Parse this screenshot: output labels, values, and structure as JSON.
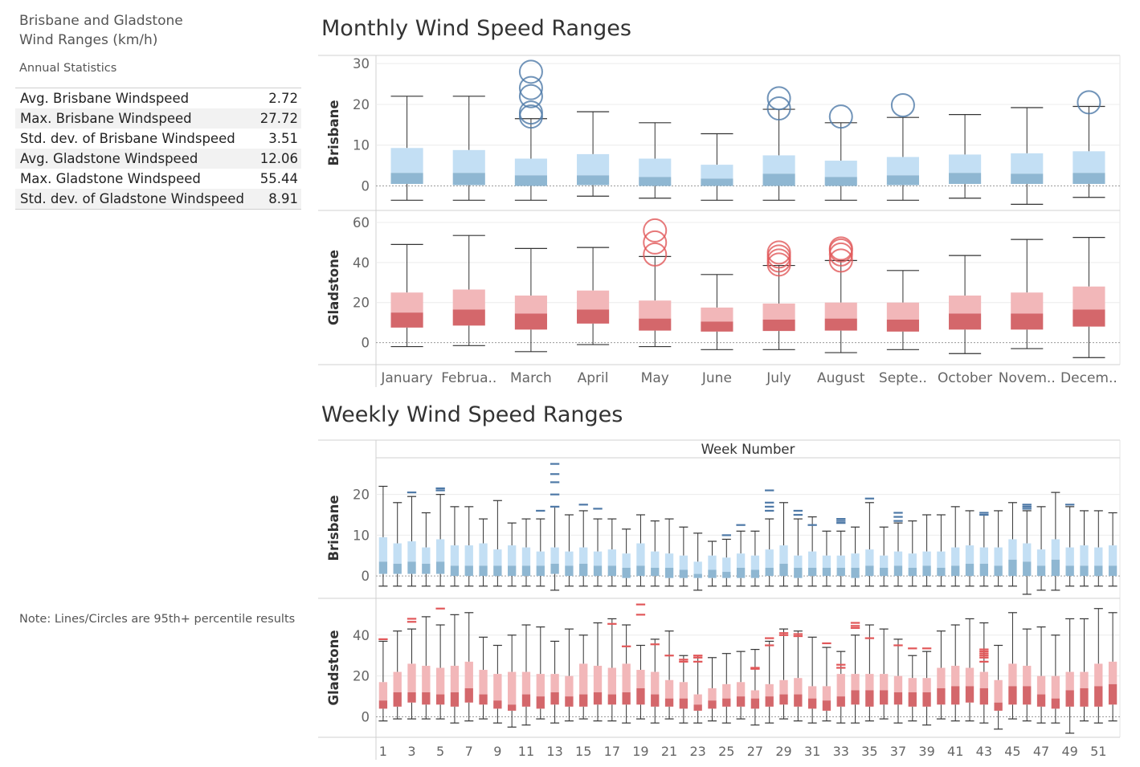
{
  "sidebar": {
    "title_line1": "Brisbane and Gladstone",
    "title_line2": "Wind Ranges (km/h)",
    "stats_heading": "Annual Statistics",
    "stats": [
      {
        "label": "Avg. Brisbane Windspeed",
        "value": "2.72"
      },
      {
        "label": "Max. Brisbane Windspeed",
        "value": "27.72"
      },
      {
        "label": "Std. dev. of Brisbane Windspeed",
        "value": "3.51"
      },
      {
        "label": "Avg. Gladstone Windspeed",
        "value": "12.06"
      },
      {
        "label": "Max. Gladstone Windspeed",
        "value": "55.44"
      },
      {
        "label": "Std. dev. of Gladstone Windspeed",
        "value": "8.91"
      }
    ],
    "note": "Note: Lines/Circles are 95th+ percentile results"
  },
  "colors": {
    "brisbane_upper": "#c3dff4",
    "brisbane_lower": "#8fb7d2",
    "brisbane_outlier": "#4e79a7",
    "gladstone_upper": "#f2b7b9",
    "gladstone_lower": "#d4676b",
    "gladstone_outlier": "#e15759",
    "whisker": "#333333"
  },
  "chart_data": [
    {
      "type": "boxplot",
      "title": "Monthly Wind Speed Ranges",
      "categories": [
        "January",
        "Februa..",
        "March",
        "April",
        "May",
        "June",
        "July",
        "August",
        "Septe..",
        "October",
        "Novem..",
        "Decem.."
      ],
      "outlier_marker": "circle",
      "series": [
        {
          "name": "Brisbane",
          "ylim": [
            -6,
            32
          ],
          "yticks": [
            0,
            10,
            20,
            30
          ],
          "whisker_low": [
            -3.5,
            -3.5,
            -3.5,
            -2.5,
            -3,
            -3.5,
            -3.5,
            -3.5,
            -3.5,
            -3,
            -4.5,
            -2.8
          ],
          "q1": [
            0.5,
            0.2,
            0,
            0.2,
            0,
            0,
            0,
            0,
            0.2,
            0.5,
            0.5,
            0.5
          ],
          "median": [
            3.2,
            3.2,
            2.6,
            2.6,
            2.2,
            1.8,
            3.0,
            2.2,
            2.6,
            3.2,
            3.0,
            3.2
          ],
          "q3": [
            9.3,
            8.8,
            6.7,
            7.8,
            6.7,
            5.2,
            7.5,
            6.2,
            7.1,
            7.7,
            8.0,
            8.5
          ],
          "whisker_high": [
            22,
            22,
            16.5,
            18.2,
            15.5,
            12.8,
            18.8,
            15.5,
            16.8,
            17.5,
            19.2,
            19.5
          ],
          "outliers": [
            [],
            [],
            [
              17,
              18,
              22,
              24,
              28
            ],
            [],
            [],
            [],
            [
              19,
              21.5
            ],
            [
              17
            ],
            [
              19.8
            ],
            [],
            [],
            [
              20.5
            ]
          ]
        },
        {
          "name": "Gladstone",
          "ylim": [
            -11,
            66
          ],
          "yticks": [
            0,
            20,
            40,
            60
          ],
          "whisker_low": [
            -2,
            -1.5,
            -4.5,
            -1,
            -2,
            -3.5,
            -3.5,
            -5,
            -3.5,
            -5.5,
            -3,
            -7.5
          ],
          "q1": [
            7.5,
            8.5,
            6.5,
            9.5,
            6,
            5.5,
            5.8,
            6,
            5.5,
            6.5,
            6.5,
            8
          ],
          "median": [
            15,
            16.5,
            14.5,
            16.5,
            12,
            10.5,
            11.5,
            12,
            11.5,
            14.5,
            14.5,
            16.5
          ],
          "q3": [
            25,
            26.5,
            23.5,
            26,
            21,
            17.5,
            19.5,
            20,
            20,
            23.5,
            25,
            28
          ],
          "whisker_high": [
            49,
            53.5,
            47,
            47.5,
            43,
            34,
            38.5,
            41,
            36,
            43.5,
            51.5,
            52.5
          ],
          "outliers": [
            [],
            [],
            [],
            [],
            [
              44,
              50,
              56
            ],
            [],
            [
              39,
              41,
              43,
              45
            ],
            [
              41,
              44,
              46,
              47
            ],
            [],
            [],
            [],
            []
          ]
        }
      ],
      "x_axis_ticks": [
        "January",
        "Februa..",
        "March",
        "April",
        "May",
        "June",
        "July",
        "August",
        "Septe..",
        "October",
        "Novem..",
        "Decem.."
      ]
    },
    {
      "type": "boxplot",
      "title": "Weekly Wind Speed Ranges",
      "xlabel": "Week Number",
      "categories": [
        1,
        2,
        3,
        4,
        5,
        6,
        7,
        8,
        9,
        10,
        11,
        12,
        13,
        14,
        15,
        16,
        17,
        18,
        19,
        20,
        21,
        22,
        23,
        24,
        25,
        26,
        27,
        28,
        29,
        30,
        31,
        32,
        33,
        34,
        35,
        36,
        37,
        38,
        39,
        40,
        41,
        42,
        43,
        44,
        45,
        46,
        47,
        48,
        49,
        50,
        51,
        52
      ],
      "x_tick_labels": [
        1,
        3,
        5,
        7,
        9,
        11,
        13,
        15,
        17,
        19,
        21,
        23,
        25,
        27,
        29,
        31,
        33,
        35,
        37,
        39,
        41,
        43,
        45,
        47,
        49,
        51
      ],
      "outlier_marker": "line",
      "series": [
        {
          "name": "Brisbane",
          "ylim": [
            -5.5,
            29
          ],
          "yticks": [
            0,
            10,
            20
          ],
          "whisker_low": [
            -2.5,
            -2.5,
            -2.5,
            -2.5,
            -2.5,
            -2.5,
            -2.5,
            -2.5,
            -2.5,
            -2.5,
            -2.5,
            -2.5,
            -3.5,
            -2.5,
            -2.5,
            -2.5,
            -2.5,
            -2.5,
            -2.5,
            -2.5,
            -2.5,
            -2.5,
            -3.5,
            -2.5,
            -2.5,
            -2.5,
            -2.5,
            -2.5,
            -2.5,
            -2.5,
            -2.5,
            -2.5,
            -2.5,
            -2.5,
            -2.5,
            -2.5,
            -2.5,
            -2.5,
            -2.5,
            -2.5,
            -2.5,
            -2.5,
            -2.5,
            -2.5,
            -2.5,
            -4.5,
            -3.5,
            -3.5,
            -2.5,
            -2.5,
            -2.5,
            -2.5
          ],
          "q1": [
            0.5,
            0.5,
            0.5,
            0.5,
            0.5,
            0,
            0,
            0,
            0,
            0,
            0,
            0,
            0.5,
            0,
            0,
            0,
            0,
            -0.5,
            0,
            0,
            -0.5,
            -0.5,
            -0.5,
            -0.5,
            -0.5,
            -0.5,
            -0.5,
            0,
            0,
            -0.5,
            0,
            0,
            0,
            -0.5,
            0,
            0,
            0,
            0,
            0,
            0,
            0,
            0,
            0,
            0,
            0,
            0,
            0,
            0,
            0,
            0,
            0,
            0
          ],
          "median": [
            3.5,
            3,
            3.5,
            3,
            3.5,
            2.5,
            2.5,
            2.5,
            2.5,
            2.5,
            2.5,
            2.5,
            3,
            2.5,
            3,
            2.5,
            2.5,
            2,
            2.5,
            2,
            2,
            1.5,
            0.5,
            1.5,
            1,
            2,
            1.5,
            2,
            3,
            2,
            2,
            2,
            2,
            2,
            2.5,
            2,
            2.5,
            2,
            2.5,
            2,
            2.5,
            3,
            3,
            2.5,
            4,
            3.5,
            2.5,
            4,
            2.5,
            2.5,
            2.5,
            2.5
          ],
          "q3": [
            9.5,
            8,
            8.5,
            7,
            9,
            7.5,
            7.5,
            8,
            6.5,
            7.5,
            7,
            6,
            7,
            6,
            7,
            6,
            6.5,
            5.5,
            8,
            6,
            5.5,
            5,
            3.5,
            5,
            4.5,
            5.5,
            5,
            6.5,
            7.5,
            5,
            6,
            5,
            5,
            5.5,
            6.5,
            5,
            6,
            5.5,
            6,
            6,
            7,
            7.5,
            7,
            7,
            9,
            8,
            6.5,
            9,
            7,
            7.5,
            7,
            7.5
          ],
          "whisker_high": [
            22,
            18,
            19.5,
            15.5,
            20,
            17,
            17,
            14,
            18.5,
            13,
            14,
            14,
            17,
            15,
            16,
            14,
            14,
            11.5,
            15,
            13.5,
            14,
            12,
            10.5,
            8.5,
            9,
            11,
            11,
            14,
            18,
            14,
            14.5,
            11,
            11,
            12,
            18,
            12,
            13,
            13.5,
            15,
            15,
            17,
            16,
            15,
            16,
            18,
            16,
            17,
            20.5,
            17,
            16,
            16,
            15.5
          ],
          "outliers": [
            [],
            [],
            [
              20.5
            ],
            [],
            [
              21.5,
              21
            ],
            [],
            [],
            [],
            [],
            [],
            [],
            [
              16
            ],
            [
              17,
              20,
              23,
              25,
              27.5
            ],
            [],
            [
              17.5
            ],
            [
              16.5
            ],
            [],
            [],
            [],
            [],
            [],
            [],
            [],
            [],
            [
              10
            ],
            [
              12.5
            ],
            [],
            [
              16,
              17,
              18,
              21
            ],
            [],
            [
              15,
              16
            ],
            [
              12.5
            ],
            [],
            [
              13,
              13.5,
              14
            ],
            [],
            [
              19
            ],
            [],
            [
              13.5,
              14.5,
              15.5
            ],
            [],
            [],
            [],
            [],
            [],
            [
              15,
              15.5
            ],
            [],
            [],
            [
              16.5,
              17,
              17.5
            ],
            [],
            [],
            [
              17.5
            ],
            [],
            [],
            []
          ]
        },
        {
          "name": "Gladstone",
          "ylim": [
            -10,
            58
          ],
          "yticks": [
            0,
            20,
            40
          ],
          "whisker_low": [
            -2,
            -1,
            -1,
            -1,
            -1,
            -3,
            -2,
            -1,
            -3,
            -5,
            -4,
            -1,
            -3,
            -2,
            -1,
            -2,
            -2,
            -3,
            -1,
            -3,
            -1,
            -3,
            -3,
            -2,
            -3,
            -1,
            -4,
            -3,
            -1,
            -2,
            -3,
            -2,
            -3,
            -3,
            -2,
            -1,
            -3,
            -2,
            -4,
            -1,
            -2,
            -2,
            -3,
            -6,
            -1,
            -2,
            -3,
            -3,
            -8,
            -2,
            -3,
            -2
          ],
          "q1": [
            4,
            5,
            7,
            6,
            6,
            5,
            7,
            6,
            4,
            3,
            5,
            4,
            6,
            5,
            5,
            6,
            6,
            6,
            6,
            5,
            5,
            4,
            3,
            4,
            5,
            5,
            4,
            5,
            6,
            5,
            4,
            3,
            5,
            6,
            5,
            6,
            6,
            5,
            5,
            6,
            6,
            7,
            6,
            3,
            6,
            6,
            5,
            4,
            5,
            5,
            5,
            6
          ],
          "median": [
            8,
            12,
            12,
            12,
            11,
            12,
            14,
            11,
            8,
            6,
            11,
            10,
            12,
            10,
            11,
            12,
            11,
            12,
            14,
            11,
            9,
            9,
            6,
            8,
            9,
            10,
            9,
            10,
            11,
            11,
            9,
            8,
            10,
            13,
            13,
            13,
            12,
            12,
            12,
            14,
            15,
            15,
            14,
            7,
            15,
            15,
            11,
            9,
            13,
            14,
            15,
            16
          ],
          "q3": [
            17,
            22,
            26,
            25,
            24,
            25,
            27,
            23,
            21,
            22,
            22,
            21,
            21,
            20,
            26,
            25,
            24,
            26,
            23,
            22,
            18,
            17,
            11,
            14,
            16,
            17,
            13,
            16,
            18,
            19,
            15,
            15,
            21,
            21,
            21,
            21,
            20,
            19,
            19,
            24,
            25,
            24,
            22,
            18,
            26,
            25,
            20,
            20,
            22,
            22,
            26,
            27
          ],
          "whisker_high": [
            37,
            42,
            43,
            49,
            45,
            50,
            51,
            39,
            35,
            40,
            45,
            44,
            37,
            43,
            40,
            46,
            48,
            45,
            35,
            38,
            42,
            30,
            30,
            29,
            31,
            32,
            33,
            37,
            43,
            42,
            39,
            34,
            32,
            40,
            45,
            43,
            38,
            30,
            32,
            42,
            45,
            48,
            46,
            35,
            51,
            43,
            44,
            40,
            48,
            48,
            53,
            51
          ],
          "outliers": [
            [
              38
            ],
            [],
            [
              46.5,
              48
            ],
            [],
            [
              53
            ],
            [],
            [],
            [],
            [],
            [],
            [],
            [],
            [],
            [],
            [],
            [],
            [
              45.5
            ],
            [
              34.5
            ],
            [
              50,
              55
            ],
            [
              35.5
            ],
            [
              30
            ],
            [
              27,
              28
            ],
            [
              27,
              29,
              30
            ],
            [],
            [],
            [],
            [
              23.5,
              24
            ],
            [
              35,
              38.5
            ],
            [
              40,
              41
            ],
            [
              39.5,
              40.5
            ],
            [],
            [
              36
            ],
            [
              24,
              25.5
            ],
            [
              43.5,
              44.5,
              46
            ],
            [
              38.5
            ],
            [],
            [
              35
            ],
            [
              33.5
            ],
            [
              33.5
            ],
            [],
            [],
            [],
            [
              27,
              29,
              30,
              31,
              32,
              33
            ],
            [],
            [],
            [],
            [],
            [],
            [],
            [],
            [],
            []
          ]
        }
      ]
    }
  ]
}
